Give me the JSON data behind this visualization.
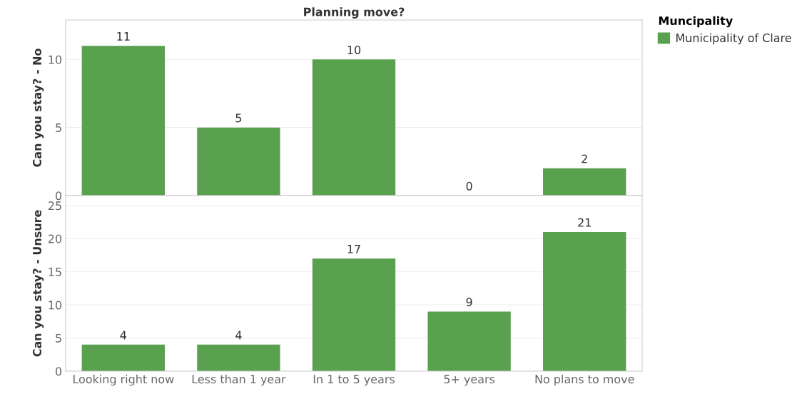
{
  "chart_data": [
    {
      "type": "bar",
      "title": "Planning move?",
      "ylabel": "Can you stay? - No",
      "legend_title": "Muncipality",
      "series": [
        {
          "name": "Municipality of Clare",
          "color": "#59a14f",
          "values": [
            11,
            5,
            10,
            0,
            2
          ]
        }
      ],
      "ylim": [
        0,
        12.9
      ],
      "yticks": [
        0,
        5,
        10
      ],
      "grid": "y",
      "data_labels": true,
      "legend": "right",
      "tick_labels": "y"
    },
    {
      "type": "bar",
      "ylabel": "Can you stay? - Unsure",
      "categories": [
        "Looking right now",
        "Less than 1 year",
        "In 1 to 5 years",
        "5+ years",
        "No plans to move"
      ],
      "series": [
        {
          "color": "#59a14f",
          "values": [
            4,
            4,
            17,
            9,
            21
          ]
        }
      ],
      "ylim": [
        0,
        26.5
      ],
      "yticks": [
        0,
        5,
        10,
        15,
        20,
        25
      ],
      "grid": "y",
      "data_labels": true
    }
  ]
}
